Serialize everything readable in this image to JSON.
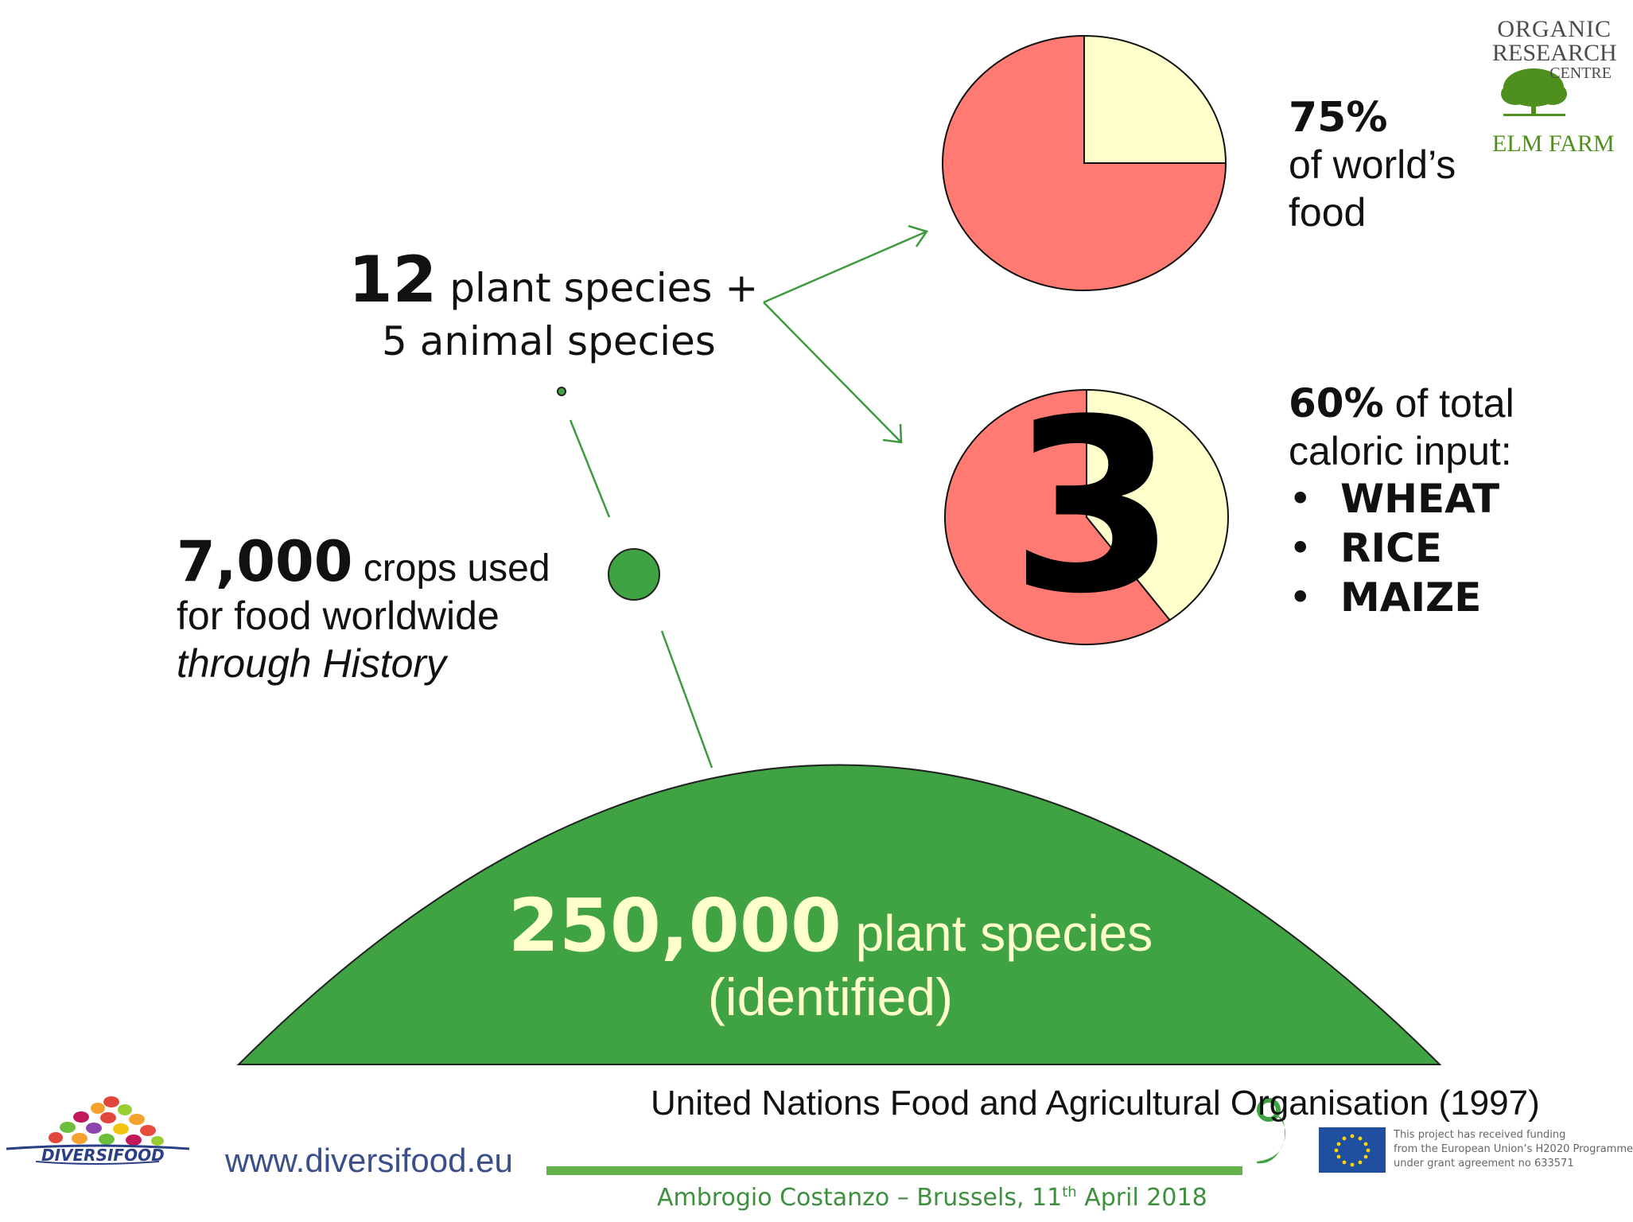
{
  "chart_data": [
    {
      "type": "pie",
      "slices": [
        {
          "label": "",
          "value": 75,
          "color": "#ff7a73"
        },
        {
          "label": "",
          "value": 25,
          "color": "#ffffcc"
        }
      ]
    },
    {
      "type": "pie",
      "slices": [
        {
          "label": "",
          "value": 60,
          "color": "#ff7a73"
        },
        {
          "label": "",
          "value": 40,
          "color": "#ffffcc"
        }
      ]
    }
  ],
  "left": {
    "twelve_num": "12",
    "twelve_text": " plant species +",
    "five_text": "5 animal species",
    "seven_num": "7,000",
    "seven_text": " crops used",
    "seven_line2": "for food worldwide",
    "seven_line3": "through History"
  },
  "right": {
    "pct75": "75%",
    "pct75_line1": "of world’s",
    "pct75_line2": "food",
    "pct60": "60%",
    "pct60_rest": " of total",
    "pct60_line2": "caloric input:",
    "crops": [
      "WHEAT",
      "RICE",
      "MAIZE"
    ],
    "bullet": "•",
    "big_number": "3"
  },
  "dome": {
    "num": "250,000",
    "rest": " plant species",
    "line2": "(identified)"
  },
  "source": "United Nations Food and Agricultural Organisation (1997)",
  "footer": {
    "url": "www.diversifood.eu",
    "author": "Ambrogio Costanzo – Brussels, 11",
    "author_sup": "th",
    "author_end": " April 2018",
    "eu_line1": "This project has received funding",
    "eu_line2": "from the European Union’s H2020 Programme",
    "eu_line3": "under grant agreement no 633571",
    "diversifood_logo": "DIVERSIFOOD"
  },
  "orc_logo": {
    "l1": "ORGANIC",
    "l2": "RESEARCH",
    "l3": "CENTRE",
    "l4": "ELM FARM"
  },
  "colors": {
    "green": "#3fa343",
    "pie_red": "#ff7a73",
    "pie_yellow": "#ffffcc",
    "dome_text": "#ffffcc",
    "line_green": "#3e9a3e"
  }
}
